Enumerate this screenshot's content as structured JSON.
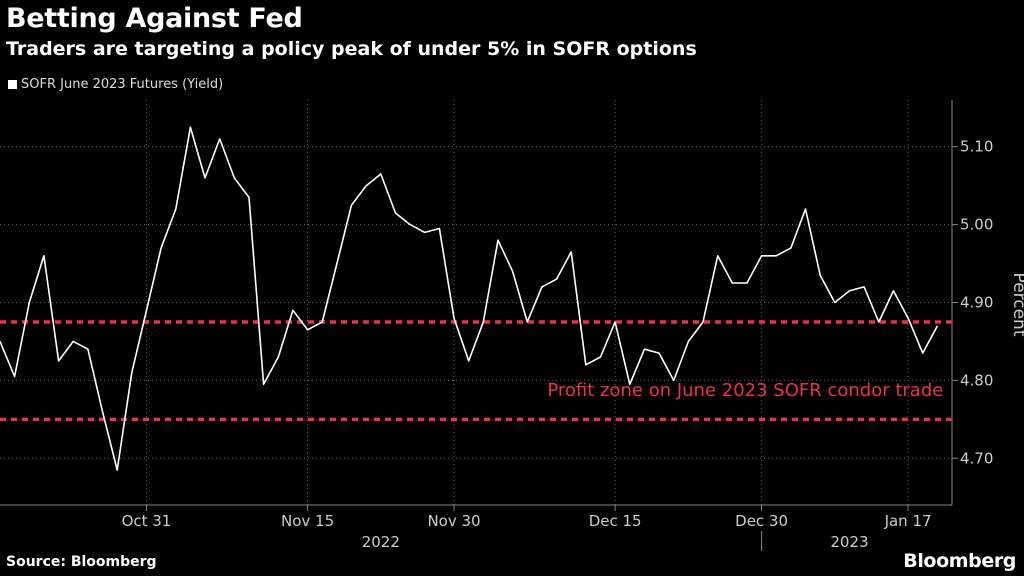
{
  "header": {
    "title": "Betting Against Fed",
    "subtitle": "Traders are targeting a policy peak of under 5% in SOFR options"
  },
  "footer": {
    "source": "Source: Bloomberg",
    "brand": "Bloomberg"
  },
  "colors": {
    "background": "#000000",
    "line": "#ffffff",
    "threshold": "#e8334a",
    "grid": "#666666"
  },
  "chart_data": {
    "type": "line",
    "title": "Betting Against Fed",
    "subtitle": "Traders are targeting a policy peak of under 5% in SOFR options",
    "xlabel": "",
    "ylabel": "Percent",
    "ylim": [
      4.64,
      5.16
    ],
    "yticks": [
      4.7,
      4.8,
      4.9,
      5.0,
      5.1
    ],
    "ytick_labels": [
      "4.70",
      "4.80",
      "4.90",
      "5.00",
      "5.10"
    ],
    "x_unit": "trading days since Oct 14, 2022",
    "xlim": [
      0,
      65
    ],
    "xticks": [
      {
        "x": 10,
        "label": "Oct 31"
      },
      {
        "x": 21,
        "label": "Nov 15"
      },
      {
        "x": 31,
        "label": "Nov 30"
      },
      {
        "x": 42,
        "label": "Dec 15"
      },
      {
        "x": 52,
        "label": "Dec 30"
      },
      {
        "x": 62,
        "label": "Jan 17"
      }
    ],
    "year_labels": [
      {
        "x": 26,
        "label": "2022"
      },
      {
        "x": 58,
        "label": "2023"
      }
    ],
    "year_separator_x": 52,
    "legend": [
      "SOFR June 2023 Futures (Yield)"
    ],
    "legend_position": "top-left",
    "grid": true,
    "series": [
      {
        "name": "SOFR June 2023 Futures (Yield)",
        "x": [
          0,
          1,
          2,
          3,
          4,
          5,
          6,
          7,
          8,
          9,
          10,
          11,
          12,
          13,
          14,
          15,
          16,
          17,
          18,
          19,
          20,
          21,
          22,
          23,
          24,
          25,
          26,
          27,
          28,
          29,
          30,
          31,
          32,
          33,
          34,
          35,
          36,
          37,
          38,
          39,
          40,
          41,
          42,
          43,
          44,
          45,
          46,
          47,
          48,
          49,
          50,
          51,
          52,
          53,
          54,
          55,
          56,
          57,
          58,
          59,
          60,
          61,
          62,
          63,
          64
        ],
        "values": [
          4.85,
          4.805,
          4.9,
          4.96,
          4.825,
          4.85,
          4.84,
          4.76,
          4.685,
          4.81,
          4.89,
          4.97,
          5.02,
          5.125,
          5.06,
          5.11,
          5.06,
          5.035,
          4.795,
          4.83,
          4.89,
          4.865,
          4.875,
          4.95,
          5.025,
          5.05,
          5.065,
          5.015,
          5.0,
          4.99,
          4.995,
          4.88,
          4.825,
          4.875,
          4.98,
          4.94,
          4.875,
          4.92,
          4.93,
          4.965,
          4.82,
          4.83,
          4.875,
          4.795,
          4.84,
          4.835,
          4.8,
          4.85,
          4.875,
          4.96,
          4.925,
          4.925,
          4.96,
          4.96,
          4.97,
          5.02,
          4.935,
          4.9,
          4.915,
          4.92,
          4.875,
          4.915,
          4.88,
          4.835,
          4.87
        ]
      }
    ],
    "thresholds": [
      4.875,
      4.75
    ],
    "annotations": [
      {
        "text": "Profit zone on June 2023 SOFR condor trade",
        "x": 64,
        "y": 4.78,
        "anchor": "end"
      }
    ]
  }
}
